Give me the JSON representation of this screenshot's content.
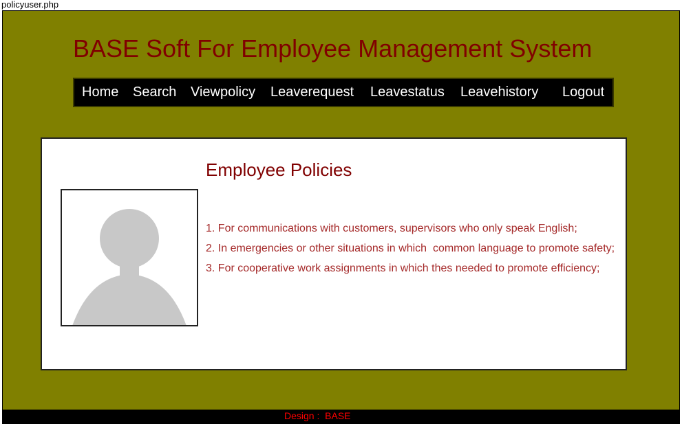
{
  "page": {
    "file_label": "policyuser.php"
  },
  "header": {
    "title": "BASE Soft For Employee Management System"
  },
  "nav": {
    "items": [
      {
        "label": "Home"
      },
      {
        "label": "Search"
      },
      {
        "label": "Viewpolicy"
      },
      {
        "label": "Leaverequest"
      },
      {
        "label": "Leavestatus"
      },
      {
        "label": "Leavehistory"
      },
      {
        "label": "Logout"
      }
    ]
  },
  "main": {
    "title": "Employee Policies",
    "policies": [
      "1. For communications with customers, supervisors who only speak English;",
      "2. In emergencies or other situations in which  common language to promote safety;",
      "3. For cooperative work assignments in which thes needed to promote efficiency;"
    ],
    "avatar_icon": "user-silhouette-icon"
  },
  "footer": {
    "text": "Design :  BASE"
  },
  "colors": {
    "outer_bg": "#808000",
    "title": "#800000",
    "nav_bg": "#000000",
    "policy_text": "#a52a2a",
    "footer_text": "#ff0000"
  }
}
